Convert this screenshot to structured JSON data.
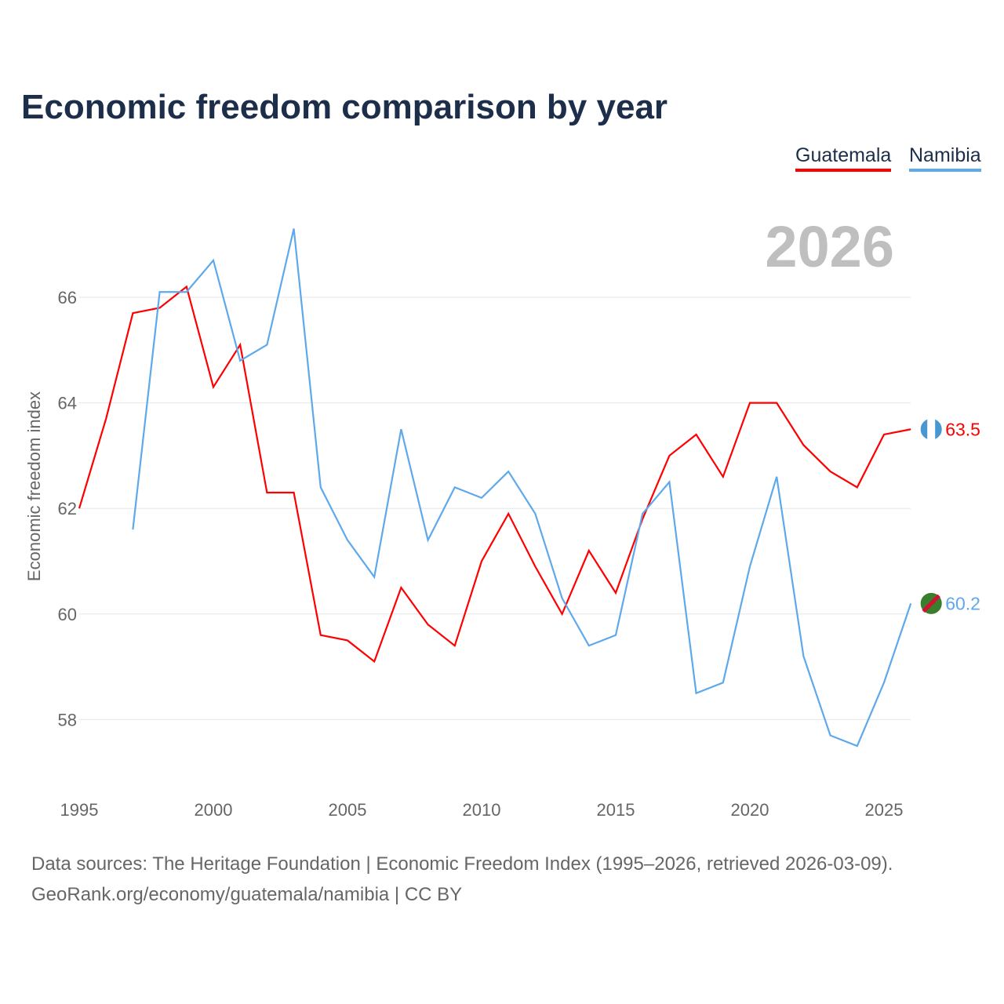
{
  "chart_data": {
    "type": "line",
    "title": "Economic freedom comparison by year",
    "ylabel": "Economic freedom index",
    "xlabel": "",
    "xlim": [
      1995,
      2026
    ],
    "ylim": [
      57,
      68
    ],
    "x_ticks": [
      1995,
      2000,
      2005,
      2010,
      2015,
      2020,
      2025
    ],
    "y_ticks": [
      58,
      60,
      62,
      64,
      66
    ],
    "grid": true,
    "legend_placement": "top-right",
    "current_year_label": "2026",
    "series": [
      {
        "name": "Guatemala",
        "color": "#ff0000",
        "end_label": "63.5",
        "x": [
          1995,
          1996,
          1997,
          1998,
          1999,
          2000,
          2001,
          2002,
          2003,
          2004,
          2005,
          2006,
          2007,
          2008,
          2009,
          2010,
          2011,
          2012,
          2013,
          2014,
          2015,
          2016,
          2017,
          2018,
          2019,
          2020,
          2021,
          2022,
          2023,
          2024,
          2025,
          2026
        ],
        "values": [
          62.0,
          63.7,
          65.7,
          65.8,
          66.2,
          64.3,
          65.1,
          62.3,
          62.3,
          59.6,
          59.5,
          59.1,
          60.5,
          59.8,
          59.4,
          61.0,
          61.9,
          60.9,
          60.0,
          61.2,
          60.4,
          61.8,
          63.0,
          63.4,
          62.6,
          64.0,
          64.0,
          63.2,
          62.7,
          62.4,
          63.4,
          63.5
        ]
      },
      {
        "name": "Namibia",
        "color": "#5ea8ec",
        "end_label": "60.2",
        "x": [
          1997,
          1998,
          1999,
          2000,
          2001,
          2002,
          2003,
          2004,
          2005,
          2006,
          2007,
          2008,
          2009,
          2010,
          2011,
          2012,
          2013,
          2014,
          2015,
          2016,
          2017,
          2018,
          2019,
          2020,
          2021,
          2022,
          2023,
          2024,
          2025,
          2026
        ],
        "values": [
          61.6,
          66.1,
          66.1,
          66.7,
          64.8,
          65.1,
          67.3,
          62.4,
          61.4,
          60.7,
          63.5,
          61.4,
          62.4,
          62.2,
          62.7,
          61.9,
          60.3,
          59.4,
          59.6,
          61.9,
          62.5,
          58.5,
          58.7,
          60.9,
          62.6,
          59.2,
          57.7,
          57.5,
          58.7,
          60.2
        ]
      }
    ]
  },
  "footer": {
    "line1": "Data sources: The Heritage Foundation | Economic Freedom Index (1995–2026, retrieved 2026-03-09).",
    "line2": "GeoRank.org/economy/guatemala/namibia | CC BY"
  }
}
